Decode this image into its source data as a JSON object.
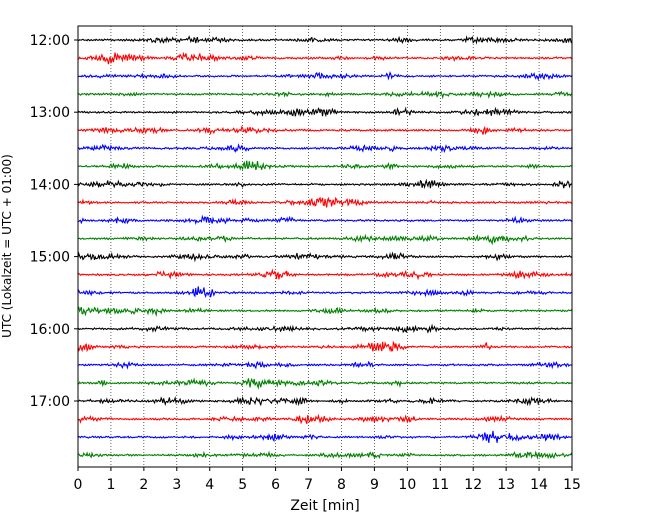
{
  "chart_data": {
    "type": "line",
    "subtype": "helicorder",
    "xlabel": "Zeit  [min]",
    "ylabel": "UTC (Lokalzeit = UTC + 01:00)",
    "xlim": [
      0,
      15
    ],
    "x_ticks": [
      "0",
      "1",
      "2",
      "3",
      "4",
      "5",
      "6",
      "7",
      "8",
      "9",
      "10",
      "11",
      "12",
      "13",
      "14",
      "15"
    ],
    "y_tick_labels": [
      "12:00",
      "13:00",
      "14:00",
      "15:00",
      "16:00",
      "17:00"
    ],
    "trace_count": 24,
    "trace_interval_min": 15,
    "trace_start_times": [
      "12:00",
      "12:15",
      "12:30",
      "12:45",
      "13:00",
      "13:15",
      "13:30",
      "13:45",
      "14:00",
      "14:15",
      "14:30",
      "14:45",
      "15:00",
      "15:15",
      "15:30",
      "15:45",
      "16:00",
      "16:15",
      "16:30",
      "16:45",
      "17:00",
      "17:15",
      "17:30",
      "17:45"
    ],
    "color_cycle": [
      "#000000",
      "#ff0000",
      "#0000ff",
      "#008000"
    ],
    "grid": {
      "vertical_dotted": true,
      "horizontal": false
    },
    "legend": "none"
  }
}
